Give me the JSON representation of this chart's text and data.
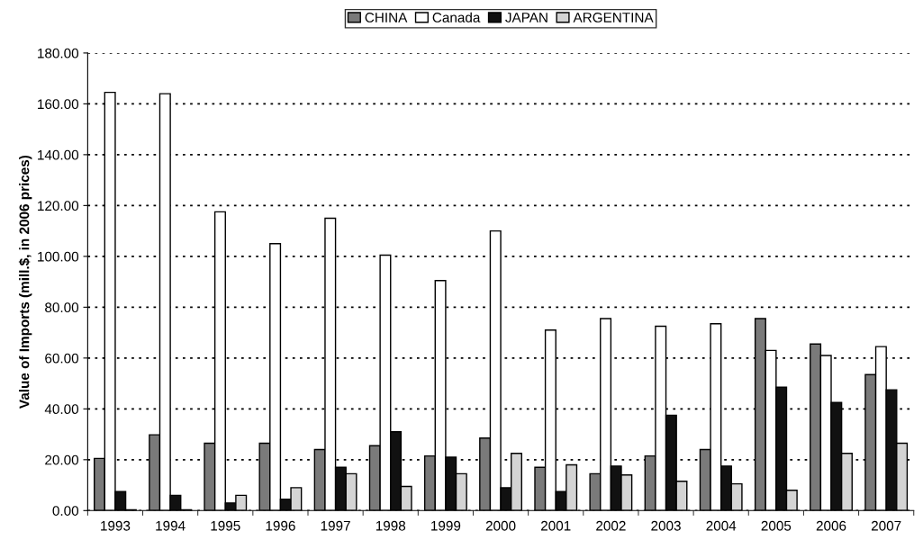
{
  "chart_data": {
    "type": "bar",
    "ylabel": "Value of Imports (mill.$, in 2006 prices)",
    "categories": [
      "1993",
      "1994",
      "1995",
      "1996",
      "1997",
      "1998",
      "1999",
      "2000",
      "2001",
      "2002",
      "2003",
      "2004",
      "2005",
      "2006",
      "2007"
    ],
    "series": [
      {
        "name": "CHINA",
        "color": "#7a7a7a",
        "values": [
          20.5,
          29.8,
          26.5,
          26.5,
          24,
          25.5,
          21.5,
          28.5,
          17,
          14.5,
          21.5,
          24,
          75.5,
          65.5,
          53.5
        ]
      },
      {
        "name": "Canada",
        "color": "#ffffff",
        "values": [
          164.5,
          164,
          117.5,
          105,
          115,
          100.5,
          90.5,
          110,
          71,
          75.5,
          72.5,
          73.5,
          63,
          61,
          64.5
        ]
      },
      {
        "name": "JAPAN",
        "color": "#111111",
        "values": [
          7.5,
          6,
          3,
          4.5,
          17,
          31,
          21,
          9,
          7.5,
          17.5,
          37.5,
          17.5,
          48.5,
          42.5,
          47.5
        ]
      },
      {
        "name": "ARGENTINA",
        "color": "#d4d4d4",
        "values": [
          0.3,
          0.3,
          6,
          9,
          14.5,
          9.5,
          14.5,
          22.5,
          18,
          14,
          11.5,
          10.5,
          8,
          22.5,
          26.5
        ]
      }
    ],
    "ylim": [
      0,
      180
    ],
    "yticks": [
      {
        "value": 0,
        "label": "0.00"
      },
      {
        "value": 20,
        "label": "20.00"
      },
      {
        "value": 40,
        "label": "40.00"
      },
      {
        "value": 60,
        "label": "60.00"
      },
      {
        "value": 80,
        "label": "80.00"
      },
      {
        "value": 100,
        "label": "100.00"
      },
      {
        "value": 120,
        "label": "120.00"
      },
      {
        "value": 140,
        "label": "140.00"
      },
      {
        "value": 160,
        "label": "160.00"
      },
      {
        "value": 180,
        "label": "180.00"
      }
    ],
    "grid": "y",
    "legend": "top"
  }
}
